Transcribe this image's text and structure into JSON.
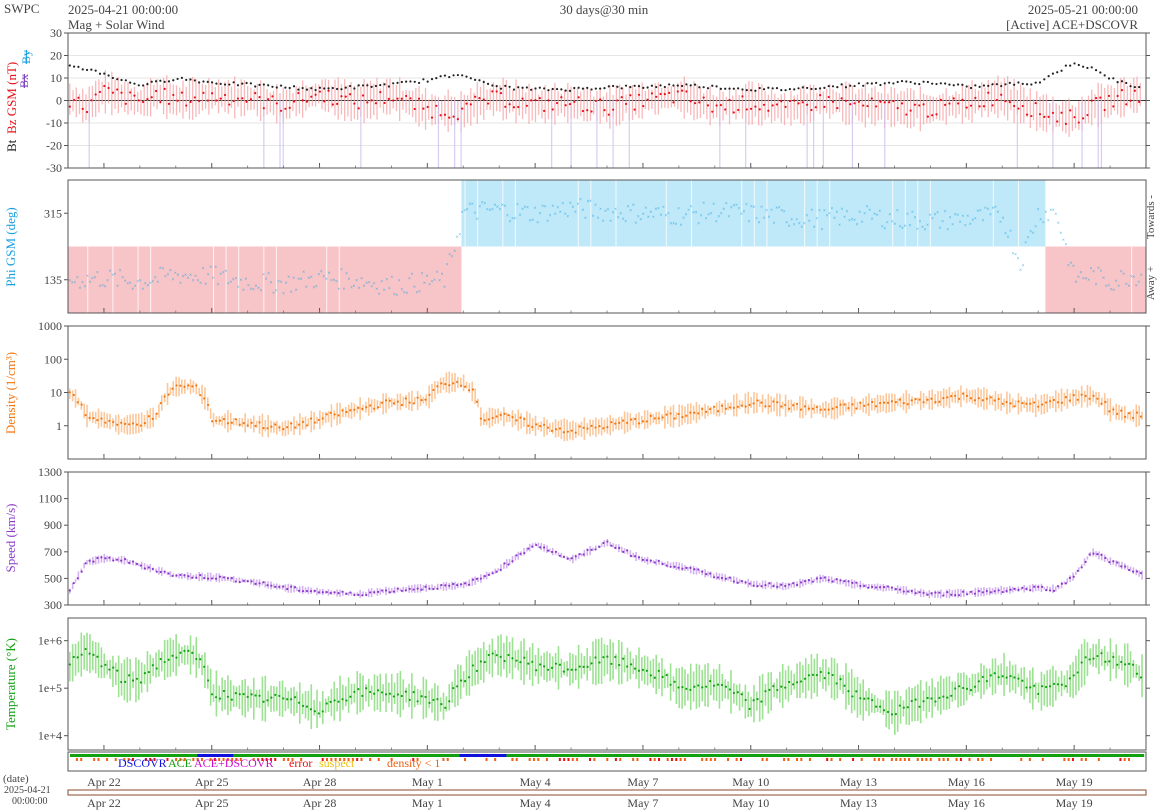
{
  "header": {
    "brand": "SWPC",
    "start": "2025-04-21 00:00:00",
    "subtitle": "Mag + Solar Wind",
    "span": "30 days@30 min",
    "end": "2025-05-21 00:00:00",
    "source": "[Active] ACE+DSCOVR"
  },
  "footer": {
    "date_label": "(date)",
    "date_value": "2025-04-21",
    "time_value": "00:00:00"
  },
  "colors": {
    "bt": "#222222",
    "bz": "#e8101a",
    "bz_band": "#f6a8aa",
    "by": "#19a0e0",
    "bx": "#7a3fc0",
    "phi": "#1aa0e0",
    "towards_band": "#bfe8f8",
    "away_band": "#f7c4c8",
    "density": "#f07814",
    "density_band": "#fcc79a",
    "speed": "#8a3cc8",
    "speed_band": "#d4b2f0",
    "temperature": "#14a014",
    "temperature_band": "#9ce292",
    "dscovr": "#1010dd",
    "ace": "#10a010",
    "ace_dscovr": "#cc10cc",
    "error": "#e81010",
    "suspect": "#e8c010",
    "low_density": "#f06010"
  },
  "chart_data": [
    {
      "type": "line",
      "panel": "magnetic field",
      "ylabel_parts": [
        "Bt",
        "Bz GSM (nT)",
        "Bx",
        "By"
      ],
      "ylim": [
        -30,
        30
      ],
      "yticks": [
        "30",
        "20",
        "10",
        "0",
        "-10",
        "-20",
        "-30"
      ],
      "x_range_days": [
        0,
        30
      ],
      "grid": true,
      "series": [
        {
          "name": "Bt",
          "x": [
            0,
            0.5,
            1,
            1.5,
            2,
            2.5,
            3,
            4,
            5,
            6,
            7,
            8,
            9,
            10,
            11,
            11.5,
            12,
            13,
            14,
            15,
            16,
            17,
            18,
            19,
            20,
            21,
            22,
            23,
            24,
            25,
            26,
            27,
            28,
            28.5,
            29,
            29.5,
            30
          ],
          "values": [
            16,
            14,
            12,
            9,
            7,
            8,
            10,
            8,
            7,
            6,
            5,
            6,
            7,
            9,
            12,
            8,
            6,
            5,
            5,
            6,
            6,
            7,
            6,
            5,
            5,
            6,
            7,
            8,
            8,
            6,
            7,
            8,
            17,
            14,
            10,
            7,
            6
          ]
        },
        {
          "name": "Bz GSM",
          "x": [
            0,
            0.5,
            1,
            1.5,
            2,
            2.5,
            3,
            4,
            5,
            6,
            7,
            8,
            9,
            10,
            11,
            11.5,
            12,
            13,
            14,
            15,
            16,
            17,
            18,
            19,
            20,
            21,
            22,
            23,
            24,
            25,
            26,
            27,
            28,
            28.5,
            29,
            29.5,
            30
          ],
          "values": [
            1,
            -3,
            4,
            2,
            -1,
            3,
            0,
            2,
            1,
            -2,
            3,
            -1,
            2,
            -4,
            -5,
            0,
            1,
            -2,
            -1,
            -3,
            0,
            2,
            -3,
            -1,
            -4,
            0,
            -2,
            -3,
            -4,
            -1,
            2,
            -5,
            -8,
            -3,
            0,
            2,
            3
          ]
        }
      ]
    },
    {
      "type": "scatter",
      "panel": "phi angle",
      "ylabel": "Phi GSM (deg)",
      "yticks": [
        "315",
        "135"
      ],
      "right_labels": [
        "Towards -",
        "Away +"
      ],
      "ylim": [
        45,
        405
      ],
      "x_range_days": [
        0,
        30
      ],
      "sector_bands": [
        {
          "label": "Away +",
          "start": 0,
          "end": 10.95
        },
        {
          "label": "Towards -",
          "start": 10.95,
          "end": 27.2
        },
        {
          "label": "Away +",
          "start": 27.2,
          "end": 30
        }
      ],
      "series": [
        {
          "name": "Phi GSM",
          "x": [
            0,
            1,
            2,
            3,
            4,
            5,
            6,
            7,
            8,
            9,
            10,
            10.5,
            11,
            12,
            13,
            14,
            15,
            16,
            17,
            18,
            19,
            20,
            21,
            22,
            23,
            24,
            25,
            26,
            26.5,
            27,
            27.5,
            28,
            28.5,
            29,
            29.5,
            30
          ],
          "values": [
            135,
            140,
            130,
            150,
            145,
            130,
            125,
            140,
            135,
            120,
            130,
            135,
            320,
            325,
            315,
            330,
            320,
            315,
            310,
            320,
            315,
            305,
            300,
            310,
            300,
            295,
            300,
            310,
            180,
            315,
            320,
            140,
            150,
            130,
            145,
            150
          ]
        }
      ]
    },
    {
      "type": "line",
      "panel": "density",
      "ylabel": "Density (1/cm³)",
      "ylog": true,
      "ylim": [
        0.1,
        1000
      ],
      "yticks": [
        "1000",
        "100",
        "10",
        "1"
      ],
      "x_range_days": [
        0,
        30
      ],
      "series": [
        {
          "name": "Density",
          "x": [
            0,
            0.5,
            1,
            1.5,
            2,
            2.5,
            3,
            3.5,
            4,
            5,
            6,
            7,
            8,
            9,
            10,
            10.5,
            11,
            11.5,
            12,
            13,
            14,
            15,
            16,
            17,
            18,
            19,
            20,
            21,
            22,
            23,
            24,
            25,
            26,
            27,
            28,
            28.5,
            29,
            29.5,
            30
          ],
          "values": [
            10,
            2,
            1.5,
            1,
            1.2,
            2,
            15,
            15,
            1.5,
            1.2,
            0.8,
            1.5,
            3,
            5,
            6,
            20,
            20,
            1.5,
            2,
            1,
            0.7,
            1,
            1.5,
            2,
            3,
            5,
            4,
            3,
            4,
            5,
            6,
            8,
            5,
            4,
            7,
            8,
            3,
            2,
            2
          ]
        }
      ]
    },
    {
      "type": "line",
      "panel": "speed",
      "ylabel": "Speed (km/s)",
      "ylim": [
        300,
        1300
      ],
      "yticks": [
        "1300",
        "1100",
        "900",
        "700",
        "500",
        "300"
      ],
      "x_range_days": [
        0,
        30
      ],
      "series": [
        {
          "name": "Speed",
          "x": [
            0,
            0.5,
            1,
            1.5,
            2,
            3,
            4,
            5,
            6,
            7,
            8,
            9,
            10,
            11,
            11.5,
            12,
            13,
            14,
            15,
            16,
            17,
            18,
            19,
            20,
            21,
            22,
            23,
            24,
            25,
            26,
            27,
            27.5,
            28,
            28.5,
            29,
            29.5,
            30
          ],
          "values": [
            380,
            620,
            650,
            640,
            600,
            520,
            510,
            480,
            430,
            400,
            380,
            410,
            430,
            450,
            500,
            570,
            760,
            640,
            770,
            640,
            590,
            520,
            460,
            440,
            500,
            450,
            420,
            380,
            390,
            410,
            430,
            420,
            520,
            700,
            630,
            580,
            510
          ]
        }
      ]
    },
    {
      "type": "line",
      "panel": "temperature",
      "ylabel": "Temperature (°K)",
      "ylog": true,
      "ylim": [
        5000,
        3000000
      ],
      "yticks": [
        "1e+6",
        "1e+5",
        "1e+4"
      ],
      "x_range_days": [
        0,
        30
      ],
      "series": [
        {
          "name": "Temperature",
          "x": [
            0,
            0.5,
            1,
            1.5,
            2,
            3,
            3.5,
            4,
            5,
            6,
            7,
            8,
            9,
            10,
            10.5,
            11,
            12,
            13,
            14,
            15,
            16,
            17,
            18,
            19,
            20,
            21,
            22,
            23,
            24,
            25,
            26,
            27,
            28,
            28.5,
            29,
            29.5,
            30
          ],
          "values": [
            250000,
            600000,
            300000,
            150000,
            150000,
            500000,
            500000,
            80000,
            60000,
            60000,
            35000,
            80000,
            80000,
            60000,
            40000,
            150000,
            500000,
            300000,
            250000,
            400000,
            250000,
            100000,
            120000,
            40000,
            120000,
            200000,
            60000,
            30000,
            60000,
            100000,
            200000,
            80000,
            150000,
            500000,
            400000,
            300000,
            150000
          ]
        }
      ]
    },
    {
      "type": "bar",
      "panel": "source indicator",
      "legend": [
        "DSCOVR",
        "ACE",
        "ACE+DSCOVR",
        "error",
        "suspect",
        "density < 1"
      ]
    }
  ],
  "x_axis": {
    "tick_labels": [
      "Apr 22",
      "Apr 25",
      "Apr 28",
      "May 1",
      "May 4",
      "May 7",
      "May 10",
      "May 13",
      "May 16",
      "May 19"
    ],
    "tick_days": [
      1,
      4,
      7,
      10,
      13,
      16,
      19,
      22,
      25,
      28
    ]
  }
}
